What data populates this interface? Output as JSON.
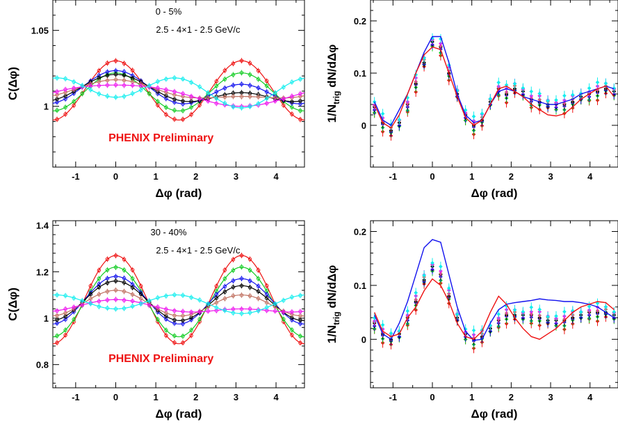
{
  "colors": {
    "red": "#ee1111",
    "green": "#11cc22",
    "blue": "#1111ee",
    "black": "#000000",
    "brown": "#c07060",
    "magenta": "#ee11ee",
    "cyan": "#11eeee"
  },
  "chart_data": [
    {
      "type": "line",
      "panel": "top-left",
      "title": "0 - 5%",
      "subtitle": "2.5 - 4×1 - 2.5 GeV/c",
      "annotation": "PHENIX Preliminary",
      "xlabel": "Δφ (rad)",
      "ylabel": "C(Δφ)",
      "xlim": [
        -1.57,
        4.71
      ],
      "ylim": [
        0.96,
        1.07
      ],
      "xticks": [
        "-1",
        "0",
        "1",
        "2",
        "3",
        "4"
      ],
      "yticks": [
        {
          "value": 1.0,
          "label": "1"
        },
        {
          "value": 1.05,
          "label": "1.05"
        }
      ],
      "series": [
        {
          "color_key": "red",
          "offset": 1.0105,
          "amplitude": 0.0195,
          "v1": 0.0,
          "v2": 0.0195
        },
        {
          "color_key": "green",
          "offset": 1.0095,
          "amplitude": 0.014,
          "v1": 0.0,
          "v2": 0.0125
        },
        {
          "color_key": "blue",
          "offset": 1.0105,
          "amplitude": 0.01,
          "v1": 0.0045,
          "v2": 0.0085
        },
        {
          "color_key": "black",
          "offset": 1.0095,
          "amplitude": 0.007,
          "v1": 0.006,
          "v2": 0.0055
        },
        {
          "color_key": "brown",
          "offset": 1.0095,
          "amplitude": 0.004,
          "v1": 0.0055,
          "v2": 0.0025
        },
        {
          "color_key": "magenta",
          "offset": 1.008,
          "amplitude": 0.001,
          "v1": 0.007,
          "v2": -0.001
        },
        {
          "color_key": "cyan",
          "offset": 1.0105,
          "amplitude": -0.004,
          "v1": 0.0035,
          "v2": -0.008
        }
      ]
    },
    {
      "type": "scatter",
      "panel": "top-right",
      "xlabel": "Δφ (rad)",
      "ylabel": "1/Ntrig dN/dΔφ",
      "xlim": [
        -1.57,
        4.71
      ],
      "ylim": [
        -0.08,
        0.24
      ],
      "xticks": [
        "-1",
        "0",
        "1",
        "2",
        "3",
        "4"
      ],
      "yticks": [
        {
          "value": 0,
          "label": "0"
        },
        {
          "value": 0.1,
          "label": "0.1"
        },
        {
          "value": 0.2,
          "label": "0.2"
        }
      ],
      "x": [
        -1.47,
        -1.26,
        -1.05,
        -0.84,
        -0.63,
        -0.42,
        -0.21,
        0.0,
        0.21,
        0.42,
        0.63,
        0.84,
        1.05,
        1.26,
        1.47,
        1.68,
        1.88,
        2.09,
        2.3,
        2.51,
        2.72,
        2.93,
        3.14,
        3.35,
        3.56,
        3.77,
        3.98,
        4.19,
        4.4,
        4.61
      ],
      "points": [
        0.035,
        0.005,
        -0.01,
        0.005,
        0.04,
        0.08,
        0.12,
        0.16,
        0.15,
        0.1,
        0.06,
        0.02,
        0.0,
        0.01,
        0.045,
        0.07,
        0.06,
        0.07,
        0.065,
        0.05,
        0.045,
        0.04,
        0.04,
        0.04,
        0.045,
        0.055,
        0.06,
        0.065,
        0.07,
        0.065
      ],
      "series": [
        {
          "color_key": "blue",
          "values": [
            0.045,
            0.01,
            0.0,
            0.03,
            0.06,
            0.1,
            0.14,
            0.17,
            0.17,
            0.12,
            0.06,
            0.02,
            0.005,
            0.01,
            0.04,
            0.065,
            0.07,
            0.065,
            0.055,
            0.05,
            0.045,
            0.04,
            0.04,
            0.045,
            0.05,
            0.06,
            0.065,
            0.07,
            0.075,
            0.07
          ]
        },
        {
          "color_key": "red",
          "values": [
            0.04,
            0.005,
            -0.005,
            0.02,
            0.06,
            0.1,
            0.135,
            0.15,
            0.145,
            0.1,
            0.055,
            0.015,
            0.0,
            0.01,
            0.04,
            0.07,
            0.075,
            0.065,
            0.055,
            0.04,
            0.03,
            0.02,
            0.018,
            0.022,
            0.035,
            0.05,
            0.06,
            0.07,
            0.075,
            0.055
          ]
        }
      ]
    },
    {
      "type": "line",
      "panel": "bottom-left",
      "title": "30 - 40%",
      "subtitle": "2.5 - 4×1 - 2.5 GeV/c",
      "annotation": "PHENIX Preliminary",
      "xlabel": "Δφ (rad)",
      "ylabel": "C(Δφ)",
      "xlim": [
        -1.57,
        4.71
      ],
      "ylim": [
        0.7,
        1.42
      ],
      "xticks": [
        "-1",
        "0",
        "1",
        "2",
        "3",
        "4"
      ],
      "yticks": [
        {
          "value": 0.8,
          "label": "0.8"
        },
        {
          "value": 1.0,
          "label": "1"
        },
        {
          "value": 1.2,
          "label": "1.2"
        },
        {
          "value": 1.4,
          "label": "1.4"
        }
      ],
      "series": [
        {
          "color_key": "red",
          "offset": 1.08,
          "amplitude": 0.19,
          "v1": 0.0,
          "v2": 0.19
        },
        {
          "color_key": "green",
          "offset": 1.07,
          "amplitude": 0.17,
          "v1": 0.0,
          "v2": 0.15
        },
        {
          "color_key": "blue",
          "offset": 1.075,
          "amplitude": 0.12,
          "v1": 0.005,
          "v2": 0.1
        },
        {
          "color_key": "black",
          "offset": 1.07,
          "amplitude": 0.1,
          "v1": 0.01,
          "v2": 0.08
        },
        {
          "color_key": "brown",
          "offset": 1.06,
          "amplitude": 0.07,
          "v1": 0.01,
          "v2": 0.05
        },
        {
          "color_key": "magenta",
          "offset": 1.045,
          "amplitude": 0.04,
          "v1": 0.02,
          "v2": 0.015
        },
        {
          "color_key": "cyan",
          "offset": 1.065,
          "amplitude": -0.02,
          "v1": 0.01,
          "v2": -0.035
        }
      ]
    },
    {
      "type": "scatter",
      "panel": "bottom-right",
      "xlabel": "Δφ (rad)",
      "ylabel": "1/Ntrig dN/dΔφ",
      "xlim": [
        -1.57,
        4.71
      ],
      "ylim": [
        -0.09,
        0.22
      ],
      "xticks": [
        "-1",
        "0",
        "1",
        "2",
        "3",
        "4"
      ],
      "yticks": [
        {
          "value": 0,
          "label": "0"
        },
        {
          "value": 0.1,
          "label": "0.1"
        },
        {
          "value": 0.2,
          "label": "0.2"
        }
      ],
      "x": [
        -1.47,
        -1.26,
        -1.05,
        -0.84,
        -0.63,
        -0.42,
        -0.21,
        0.0,
        0.21,
        0.42,
        0.63,
        0.84,
        1.05,
        1.26,
        1.47,
        1.68,
        1.88,
        2.09,
        2.3,
        2.51,
        2.72,
        2.93,
        3.14,
        3.35,
        3.56,
        3.77,
        3.98,
        4.19,
        4.4,
        4.61
      ],
      "points": [
        0.03,
        0.01,
        0.0,
        0.01,
        0.04,
        0.07,
        0.11,
        0.135,
        0.12,
        0.08,
        0.04,
        0.01,
        0.0,
        0.005,
        0.02,
        0.035,
        0.045,
        0.045,
        0.045,
        0.045,
        0.04,
        0.035,
        0.035,
        0.035,
        0.04,
        0.045,
        0.05,
        0.05,
        0.05,
        0.045
      ],
      "series": [
        {
          "color_key": "blue",
          "values": [
            0.045,
            0.01,
            0.0,
            0.03,
            0.07,
            0.12,
            0.17,
            0.185,
            0.18,
            0.12,
            0.06,
            0.015,
            -0.002,
            0.0,
            0.03,
            0.055,
            0.065,
            0.068,
            0.07,
            0.072,
            0.075,
            0.073,
            0.072,
            0.07,
            0.07,
            0.068,
            0.065,
            0.06,
            0.05,
            0.04
          ]
        },
        {
          "color_key": "red",
          "values": [
            0.05,
            0.015,
            0.005,
            0.01,
            0.04,
            0.06,
            0.09,
            0.112,
            0.1,
            0.07,
            0.03,
            0.005,
            0.0,
            0.015,
            0.05,
            0.08,
            0.065,
            0.04,
            0.02,
            0.005,
            0.0,
            0.01,
            0.02,
            0.035,
            0.05,
            0.06,
            0.065,
            0.07,
            0.068,
            0.055
          ]
        }
      ]
    }
  ]
}
